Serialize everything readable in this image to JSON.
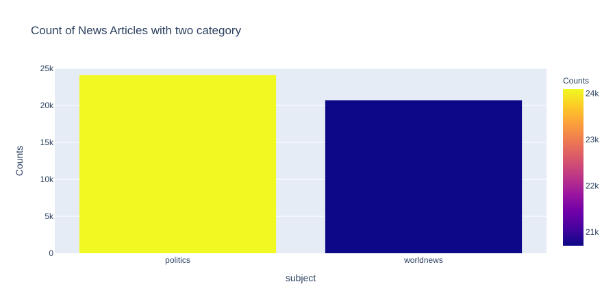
{
  "chart_data": {
    "type": "bar",
    "title": "Count of News Articles with two category",
    "xlabel": "subject",
    "ylabel": "Counts",
    "categories": [
      "politics",
      "worldnews"
    ],
    "values": [
      24100,
      20700
    ],
    "ylim": [
      0,
      25000
    ],
    "yticks": [
      0,
      5000,
      10000,
      15000,
      20000,
      25000
    ],
    "ytick_labels": [
      "0",
      "5k",
      "10k",
      "15k",
      "20k",
      "25k"
    ],
    "grid": true,
    "colorbar": {
      "title": "Counts",
      "range": [
        20700,
        24100
      ],
      "ticks": [
        21000,
        22000,
        23000,
        24000
      ],
      "tick_labels": [
        "21k",
        "22k",
        "23k",
        "24k"
      ],
      "colorscale": [
        "#0d0887",
        "#46039f",
        "#7201a8",
        "#9c179e",
        "#bd3786",
        "#d8576b",
        "#ed7953",
        "#fb9f3a",
        "#fdca26",
        "#f0f921"
      ]
    },
    "colors": {
      "plot_background": "#e5ecf6",
      "grid": "#ffffff",
      "text": "#2a3f5f"
    }
  }
}
